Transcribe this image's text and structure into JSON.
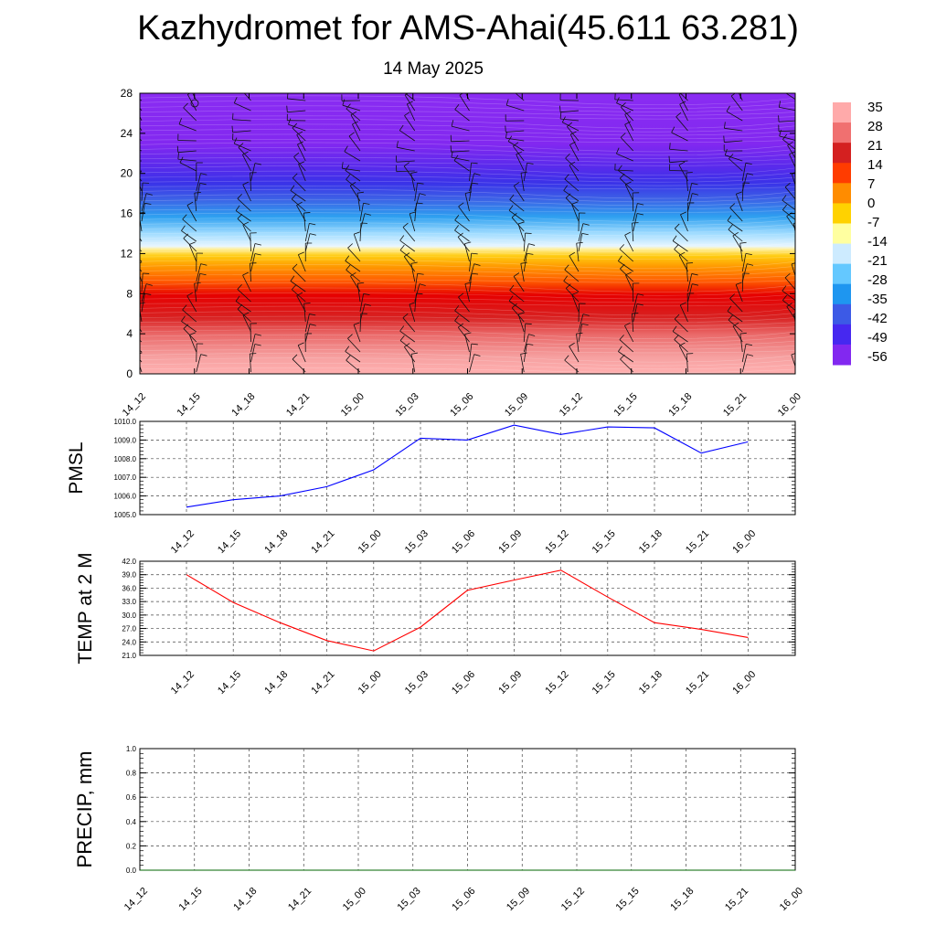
{
  "header": {
    "title": "Kazhydromet for AMS-Ahai(45.611 63.281)",
    "date": "14 May 2025"
  },
  "colors": {
    "pmsl_line": "#0000ff",
    "temp_line": "#ff0000",
    "precip_line": "#006400",
    "colorbar": [
      "#ffaaaa",
      "#f07070",
      "#d42020",
      "#ff3c00",
      "#ff8c00",
      "#ffd200",
      "#ffffa0",
      "#cdebff",
      "#64c8ff",
      "#1e96f0",
      "#3c5ae6",
      "#4628f0",
      "#8228f0"
    ]
  },
  "chart_data": [
    {
      "type": "heatmap",
      "name": "cross-section",
      "ylabel": "",
      "xticks": [
        "14_12",
        "14_15",
        "14_18",
        "14_21",
        "15_00",
        "15_03",
        "15_06",
        "15_09",
        "15_12",
        "15_15",
        "15_18",
        "15_21",
        "16_00"
      ],
      "yticks": [
        "0",
        "4",
        "8",
        "12",
        "16",
        "20",
        "24",
        "28"
      ],
      "ylim": [
        0,
        28
      ],
      "colorbar_labels": [
        "35",
        "28",
        "21",
        "14",
        "7",
        "0",
        "-7",
        "-14",
        "-21",
        "-28",
        "-35",
        "-42",
        "-49",
        "-56"
      ],
      "wind_barbs": true
    },
    {
      "type": "line",
      "name": "pmsl",
      "ylabel": "PMSL",
      "categories": [
        "14_12",
        "14_15",
        "14_18",
        "14_21",
        "15_00",
        "15_03",
        "15_06",
        "15_09",
        "15_12",
        "15_15",
        "15_18",
        "15_21",
        "16_00"
      ],
      "values": [
        1005.4,
        1005.8,
        1006.0,
        1006.5,
        1007.4,
        1009.1,
        1009.0,
        1009.8,
        1009.3,
        1009.7,
        1009.65,
        1008.3,
        1008.9
      ],
      "ylim": [
        1005.0,
        1010.0
      ],
      "yticks": [
        "1005.0",
        "1006.0",
        "1007.0",
        "1008.0",
        "1009.0",
        "1010.0"
      ],
      "grid": true
    },
    {
      "type": "line",
      "name": "temp",
      "ylabel": "TEMP at 2 M",
      "categories": [
        "14_12",
        "14_15",
        "14_18",
        "14_21",
        "15_00",
        "15_03",
        "15_06",
        "15_09",
        "15_12",
        "15_15",
        "15_18",
        "15_21",
        "16_00"
      ],
      "values": [
        39.0,
        32.8,
        28.3,
        24.3,
        22.0,
        27.3,
        35.5,
        37.8,
        40.0,
        34.0,
        28.3,
        26.8,
        25.0
      ],
      "ylim": [
        21.0,
        42.0
      ],
      "yticks": [
        "21.0",
        "24.0",
        "27.0",
        "30.0",
        "33.0",
        "36.0",
        "39.0",
        "42.0"
      ],
      "grid": true
    },
    {
      "type": "line",
      "name": "precip",
      "ylabel": "PRECIP, mm",
      "categories": [
        "14_12",
        "14_15",
        "14_18",
        "14_21",
        "15_00",
        "15_03",
        "15_06",
        "15_09",
        "15_12",
        "15_15",
        "15_18",
        "15_21",
        "16_00"
      ],
      "values": [
        0,
        0,
        0,
        0,
        0,
        0,
        0,
        0,
        0,
        0,
        0,
        0,
        0
      ],
      "ylim": [
        0.0,
        1.0
      ],
      "yticks": [
        "0.0",
        "0.2",
        "0.4",
        "0.6",
        "0.8",
        "1.0"
      ],
      "grid": true
    }
  ]
}
